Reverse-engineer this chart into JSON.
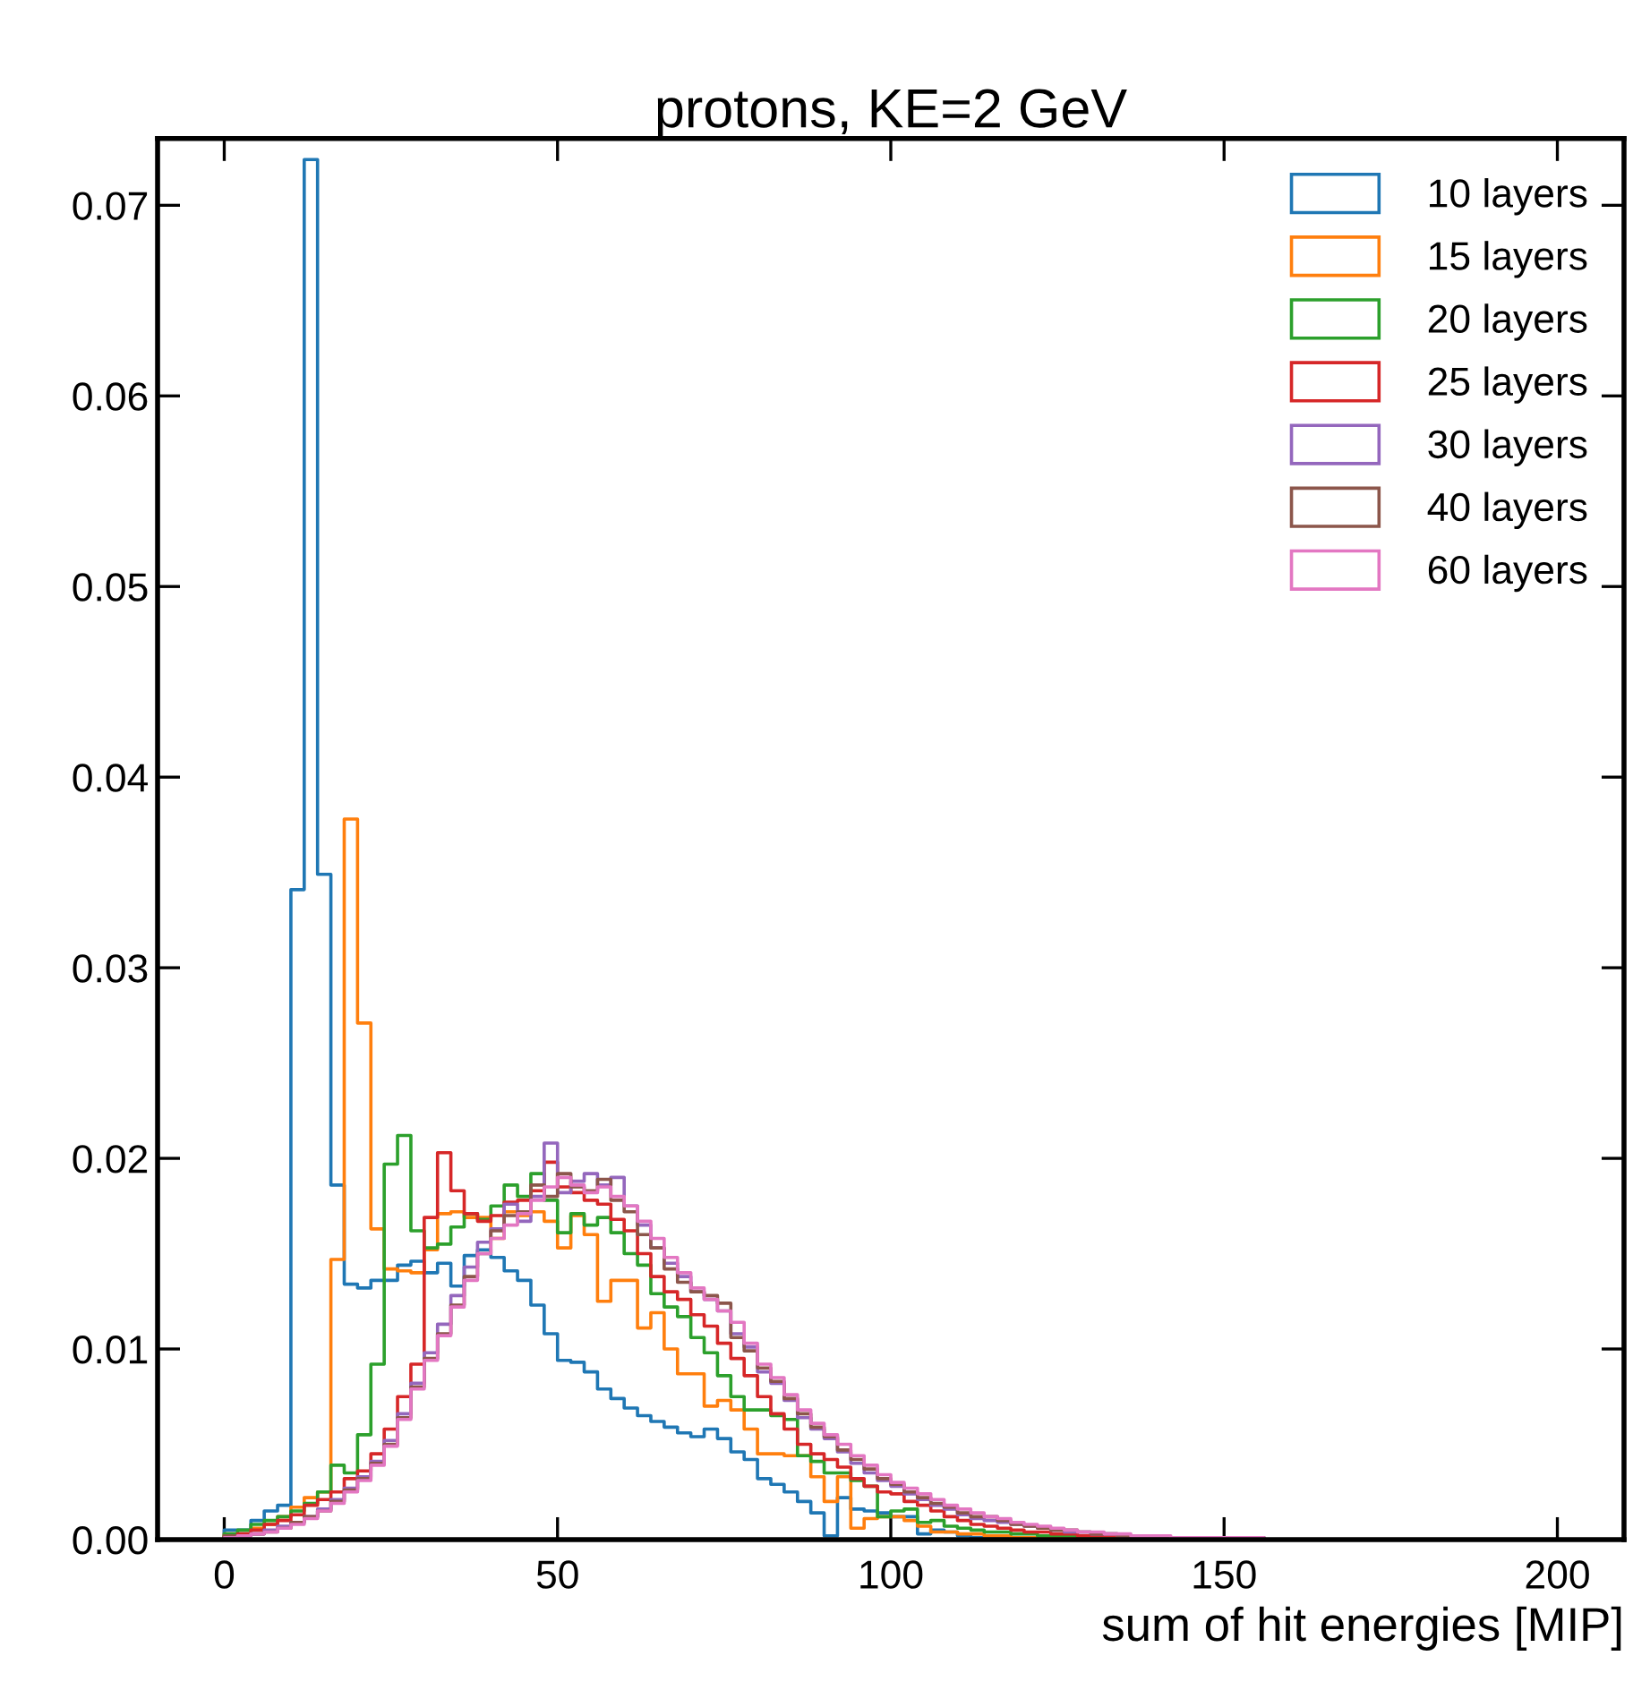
{
  "chart_data": {
    "type": "histogram",
    "title": "protons, KE=2 GeV",
    "xlabel": "sum of hit energies [MIP]",
    "bins": [
      0,
      2,
      4,
      6,
      8,
      10,
      12,
      14,
      16,
      18,
      20,
      22,
      24,
      26,
      28,
      30,
      32,
      34,
      36,
      38,
      40,
      42,
      44,
      46,
      48,
      50,
      52,
      54,
      56,
      58,
      60,
      62,
      64,
      66,
      68,
      70,
      72,
      74,
      76,
      78,
      80,
      82,
      84,
      86,
      88,
      90,
      92,
      94,
      96,
      98,
      100,
      102,
      104,
      106,
      108,
      110,
      112,
      114,
      116,
      118,
      120,
      122,
      124,
      126,
      128,
      130,
      132,
      134,
      136,
      138,
      140,
      142,
      144,
      146,
      148,
      150,
      152,
      154,
      156,
      158,
      160,
      162,
      164,
      166,
      168,
      170,
      172,
      174,
      176,
      178,
      180,
      182,
      184,
      186,
      188,
      190,
      192,
      194,
      196,
      198,
      200
    ],
    "series": [
      {
        "name": "10 layers",
        "color": "#1f77b4",
        "values": [
          0.0005,
          0.0005,
          0.001,
          0.0015,
          0.0018,
          0.0341,
          0.0724,
          0.0349,
          0.0186,
          0.0134,
          0.0132,
          0.0136,
          0.0136,
          0.0144,
          0.0146,
          0.014,
          0.0145,
          0.0133,
          0.0149,
          0.0152,
          0.0148,
          0.0141,
          0.0136,
          0.0123,
          0.0108,
          0.0094,
          0.0093,
          0.0088,
          0.0079,
          0.0074,
          0.0069,
          0.0065,
          0.0062,
          0.0059,
          0.0056,
          0.0054,
          0.0058,
          0.0053,
          0.0046,
          0.0042,
          0.0032,
          0.0029,
          0.0025,
          0.002,
          0.0014,
          0.0002,
          0.0022,
          0.0016,
          0.0015,
          0.0014,
          0.0012,
          0.0012,
          0.0003,
          0.0005,
          0.0004,
          0.0002,
          0.0001,
          0.0001,
          0.0001,
          0,
          0,
          0,
          0,
          0,
          0,
          0,
          0,
          0,
          0,
          0,
          0,
          0,
          0,
          0,
          0,
          0,
          0,
          0,
          0,
          0,
          0,
          0,
          0,
          0,
          0,
          0,
          0,
          0,
          0,
          0,
          0,
          0,
          0,
          0,
          0,
          0,
          0,
          0,
          0,
          0
        ]
      },
      {
        "name": "15 layers",
        "color": "#ff7f0e",
        "values": [
          0.0003,
          0.0003,
          0.0006,
          0.0008,
          0.0012,
          0.0017,
          0.0022,
          0.0025,
          0.0147,
          0.0378,
          0.0271,
          0.0163,
          0.0142,
          0.0141,
          0.014,
          0.0152,
          0.0171,
          0.0172,
          0.0169,
          0.0169,
          0.0158,
          0.0172,
          0.017,
          0.0172,
          0.0167,
          0.0153,
          0.017,
          0.016,
          0.0125,
          0.0136,
          0.0136,
          0.0111,
          0.0119,
          0.01,
          0.0087,
          0.0087,
          0.007,
          0.0073,
          0.0068,
          0.0058,
          0.0045,
          0.0045,
          0.0044,
          0.0044,
          0.0033,
          0.002,
          0.0033,
          0.0006,
          0.0011,
          0.0012,
          0.0012,
          0.001,
          0.0007,
          0.0004,
          0.0004,
          0.0003,
          0.0003,
          0.0002,
          0.0002,
          0.0001,
          0.0001,
          0.0001,
          0.0001,
          0.0001,
          0,
          0,
          0,
          0,
          0,
          0,
          0,
          0,
          0,
          0,
          0,
          0,
          0,
          0,
          0,
          0,
          0,
          0,
          0,
          0,
          0,
          0,
          0,
          0,
          0,
          0,
          0,
          0,
          0,
          0,
          0,
          0,
          0,
          0,
          0,
          0
        ]
      },
      {
        "name": "20 layers",
        "color": "#2ca02c",
        "values": [
          0.0003,
          0.0005,
          0.0008,
          0.001,
          0.0012,
          0.0015,
          0.0019,
          0.0025,
          0.0039,
          0.0035,
          0.0055,
          0.0092,
          0.0197,
          0.0212,
          0.0162,
          0.0153,
          0.0155,
          0.0164,
          0.0171,
          0.0168,
          0.0175,
          0.0186,
          0.018,
          0.0192,
          0.0178,
          0.0161,
          0.0171,
          0.0165,
          0.0169,
          0.0161,
          0.015,
          0.0144,
          0.0129,
          0.0122,
          0.0117,
          0.0106,
          0.0098,
          0.0086,
          0.0075,
          0.0068,
          0.0068,
          0.0065,
          0.0063,
          0.0044,
          0.0041,
          0.0035,
          0.0035,
          0.0031,
          0.0028,
          0.0012,
          0.0015,
          0.0016,
          0.0009,
          0.001,
          0.0007,
          0.0006,
          0.0005,
          0.0004,
          0.0004,
          0.0003,
          0.0003,
          0.0002,
          0.0002,
          0.0002,
          0.0001,
          0.0001,
          0.0001,
          0.0001,
          0.0001,
          0,
          0,
          0,
          0,
          0,
          0,
          0,
          0,
          0,
          0,
          0,
          0,
          0,
          0,
          0,
          0,
          0,
          0,
          0,
          0,
          0,
          0,
          0,
          0,
          0,
          0,
          0,
          0,
          0,
          0,
          0
        ]
      },
      {
        "name": "25 layers",
        "color": "#d62728",
        "values": [
          0.0002,
          0.0003,
          0.0005,
          0.0008,
          0.001,
          0.0013,
          0.0018,
          0.0021,
          0.0025,
          0.0032,
          0.0036,
          0.0045,
          0.0058,
          0.0075,
          0.0092,
          0.0169,
          0.0203,
          0.0183,
          0.0171,
          0.0167,
          0.017,
          0.0177,
          0.0178,
          0.0183,
          0.0198,
          0.0185,
          0.0182,
          0.0178,
          0.0176,
          0.0168,
          0.0162,
          0.015,
          0.0138,
          0.013,
          0.0126,
          0.0118,
          0.0112,
          0.0103,
          0.0095,
          0.0086,
          0.0075,
          0.0066,
          0.0058,
          0.005,
          0.0045,
          0.0042,
          0.0038,
          0.0032,
          0.0028,
          0.0025,
          0.0024,
          0.002,
          0.0018,
          0.0015,
          0.0012,
          0.001,
          0.0008,
          0.0007,
          0.0006,
          0.0005,
          0.0004,
          0.0004,
          0.0003,
          0.0003,
          0.0002,
          0.0002,
          0.0002,
          0.0001,
          0.0001,
          0.0001,
          0.0001,
          0.0001,
          0.0001,
          0,
          0,
          0,
          0,
          0,
          0,
          0,
          0,
          0,
          0,
          0,
          0,
          0,
          0,
          0,
          0,
          0,
          0,
          0,
          0,
          0,
          0,
          0,
          0,
          0,
          0,
          0
        ]
      },
      {
        "name": "30 layers",
        "color": "#9467bd",
        "values": [
          0.0001,
          0.0002,
          0.0003,
          0.0005,
          0.0007,
          0.0009,
          0.0012,
          0.0016,
          0.0021,
          0.0027,
          0.0033,
          0.0041,
          0.0052,
          0.0066,
          0.0082,
          0.0098,
          0.0113,
          0.0128,
          0.0143,
          0.0156,
          0.0163,
          0.0176,
          0.0167,
          0.018,
          0.0208,
          0.0182,
          0.0188,
          0.0192,
          0.0186,
          0.019,
          0.0175,
          0.0165,
          0.0153,
          0.0145,
          0.0138,
          0.013,
          0.0126,
          0.012,
          0.0108,
          0.0101,
          0.0088,
          0.0082,
          0.0073,
          0.0064,
          0.0058,
          0.0053,
          0.0046,
          0.004,
          0.0035,
          0.0031,
          0.0028,
          0.0024,
          0.0021,
          0.0018,
          0.0016,
          0.0013,
          0.0011,
          0.001,
          0.0009,
          0.0008,
          0.0007,
          0.0006,
          0.0005,
          0.0004,
          0.0004,
          0.0003,
          0.0003,
          0.0002,
          0.0002,
          0.0002,
          0.0001,
          0.0001,
          0.0001,
          0.0001,
          0.0001,
          0.0001,
          0.0001,
          0.0001,
          0,
          0,
          0,
          0,
          0,
          0,
          0,
          0,
          0,
          0,
          0,
          0,
          0,
          0,
          0,
          0,
          0,
          0,
          0,
          0,
          0,
          0
        ]
      },
      {
        "name": "40 layers",
        "color": "#8c564b",
        "values": [
          0.0002,
          0.0002,
          0.0003,
          0.0004,
          0.0006,
          0.0009,
          0.0012,
          0.0015,
          0.002,
          0.0026,
          0.0032,
          0.004,
          0.005,
          0.0064,
          0.008,
          0.0095,
          0.0108,
          0.0123,
          0.0138,
          0.015,
          0.0162,
          0.017,
          0.0172,
          0.0186,
          0.018,
          0.0192,
          0.0185,
          0.0183,
          0.0189,
          0.0178,
          0.0172,
          0.016,
          0.0153,
          0.0142,
          0.0135,
          0.013,
          0.0128,
          0.0124,
          0.0106,
          0.0099,
          0.009,
          0.0083,
          0.0074,
          0.0066,
          0.0059,
          0.0054,
          0.0047,
          0.0042,
          0.0037,
          0.0032,
          0.0029,
          0.0025,
          0.0022,
          0.0019,
          0.0017,
          0.0014,
          0.0012,
          0.0012,
          0.001,
          0.0008,
          0.0007,
          0.0006,
          0.0005,
          0.0005,
          0.0004,
          0.0003,
          0.0003,
          0.0002,
          0.0002,
          0.0002,
          0.0001,
          0.0001,
          0.0001,
          0.0001,
          0.0001,
          0.0001,
          0.0001,
          0.0001,
          0,
          0,
          0,
          0,
          0,
          0,
          0,
          0,
          0,
          0,
          0,
          0,
          0,
          0,
          0,
          0,
          0,
          0,
          0,
          0,
          0,
          0
        ]
      },
      {
        "name": "60 layers",
        "color": "#e377c2",
        "values": [
          0.0001,
          0.0002,
          0.0003,
          0.0004,
          0.0006,
          0.0008,
          0.0011,
          0.0015,
          0.0019,
          0.0025,
          0.0031,
          0.0039,
          0.0049,
          0.0063,
          0.0079,
          0.0094,
          0.0107,
          0.0122,
          0.0136,
          0.015,
          0.0158,
          0.0165,
          0.0171,
          0.0178,
          0.0185,
          0.019,
          0.0186,
          0.0182,
          0.0185,
          0.018,
          0.0175,
          0.0167,
          0.0158,
          0.0148,
          0.014,
          0.0132,
          0.0126,
          0.012,
          0.0114,
          0.0103,
          0.0092,
          0.0085,
          0.0076,
          0.0068,
          0.0061,
          0.0055,
          0.005,
          0.0044,
          0.0039,
          0.0034,
          0.003,
          0.0027,
          0.0024,
          0.0021,
          0.0018,
          0.0016,
          0.0014,
          0.0012,
          0.0011,
          0.0009,
          0.0008,
          0.0007,
          0.0006,
          0.0005,
          0.0004,
          0.0004,
          0.0003,
          0.0003,
          0.0002,
          0.0002,
          0.0002,
          0.0001,
          0.0001,
          0.0001,
          0.0001,
          0.0001,
          0.0001,
          0.0001,
          0,
          0,
          0,
          0,
          0,
          0,
          0,
          0,
          0,
          0,
          0,
          0,
          0,
          0,
          0,
          0,
          0,
          0,
          0,
          0,
          0,
          0
        ]
      }
    ],
    "xlim": [
      -10,
      210
    ],
    "xticks": [
      0,
      50,
      100,
      150,
      200
    ],
    "ylim": [
      0,
      0.0735
    ],
    "yticks": [
      {
        "value": 0,
        "label": "0.00"
      },
      {
        "value": 0.01,
        "label": "0.01"
      },
      {
        "value": 0.02,
        "label": "0.02"
      },
      {
        "value": 0.03,
        "label": "0.03"
      },
      {
        "value": 0.04,
        "label": "0.04"
      },
      {
        "value": 0.05,
        "label": "0.05"
      },
      {
        "value": 0.06,
        "label": "0.06"
      },
      {
        "value": 0.07,
        "label": "0.07"
      }
    ],
    "grid": false,
    "legend": "top right"
  }
}
